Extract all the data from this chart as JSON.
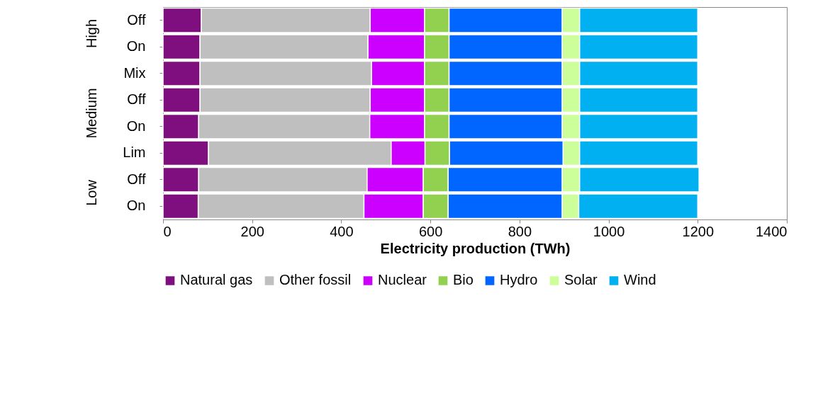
{
  "chart_data": {
    "type": "bar",
    "orientation": "horizontal",
    "stacked": true,
    "categories": [
      "Off",
      "On",
      "Mix",
      "Off",
      "On",
      "Lim",
      "Off",
      "On"
    ],
    "series": [
      {
        "name": "Natural gas",
        "color": "#7f0f7e",
        "values": [
          86,
          83,
          83,
          83,
          80,
          102,
          80,
          79
        ]
      },
      {
        "name": "Other fossil",
        "color": "#bfbfbf",
        "values": [
          379,
          377,
          385,
          382,
          384,
          410,
          378,
          372
        ]
      },
      {
        "name": "Nuclear",
        "color": "#cc00ff",
        "values": [
          122,
          127,
          119,
          122,
          123,
          76,
          126,
          133
        ]
      },
      {
        "name": "Bio",
        "color": "#92d050",
        "values": [
          55,
          55,
          55,
          55,
          55,
          55,
          56,
          56
        ]
      },
      {
        "name": "Hydro",
        "color": "#0066ff",
        "values": [
          254,
          254,
          254,
          254,
          254,
          255,
          256,
          256
        ]
      },
      {
        "name": "Solar",
        "color": "#ccff99",
        "values": [
          39,
          39,
          39,
          39,
          39,
          37,
          39,
          37
        ]
      },
      {
        "name": "Wind",
        "color": "#00b0f0",
        "values": [
          265,
          265,
          265,
          265,
          265,
          265,
          268,
          267
        ]
      }
    ],
    "xlabel": "Electricity production (TWh)",
    "xlim": [
      0,
      1400
    ],
    "xticks": [
      0,
      200,
      400,
      600,
      800,
      1000,
      1200,
      1400
    ],
    "annotations": [
      "High",
      "Medium",
      "Low"
    ],
    "grid": false,
    "legend": "bottom"
  }
}
